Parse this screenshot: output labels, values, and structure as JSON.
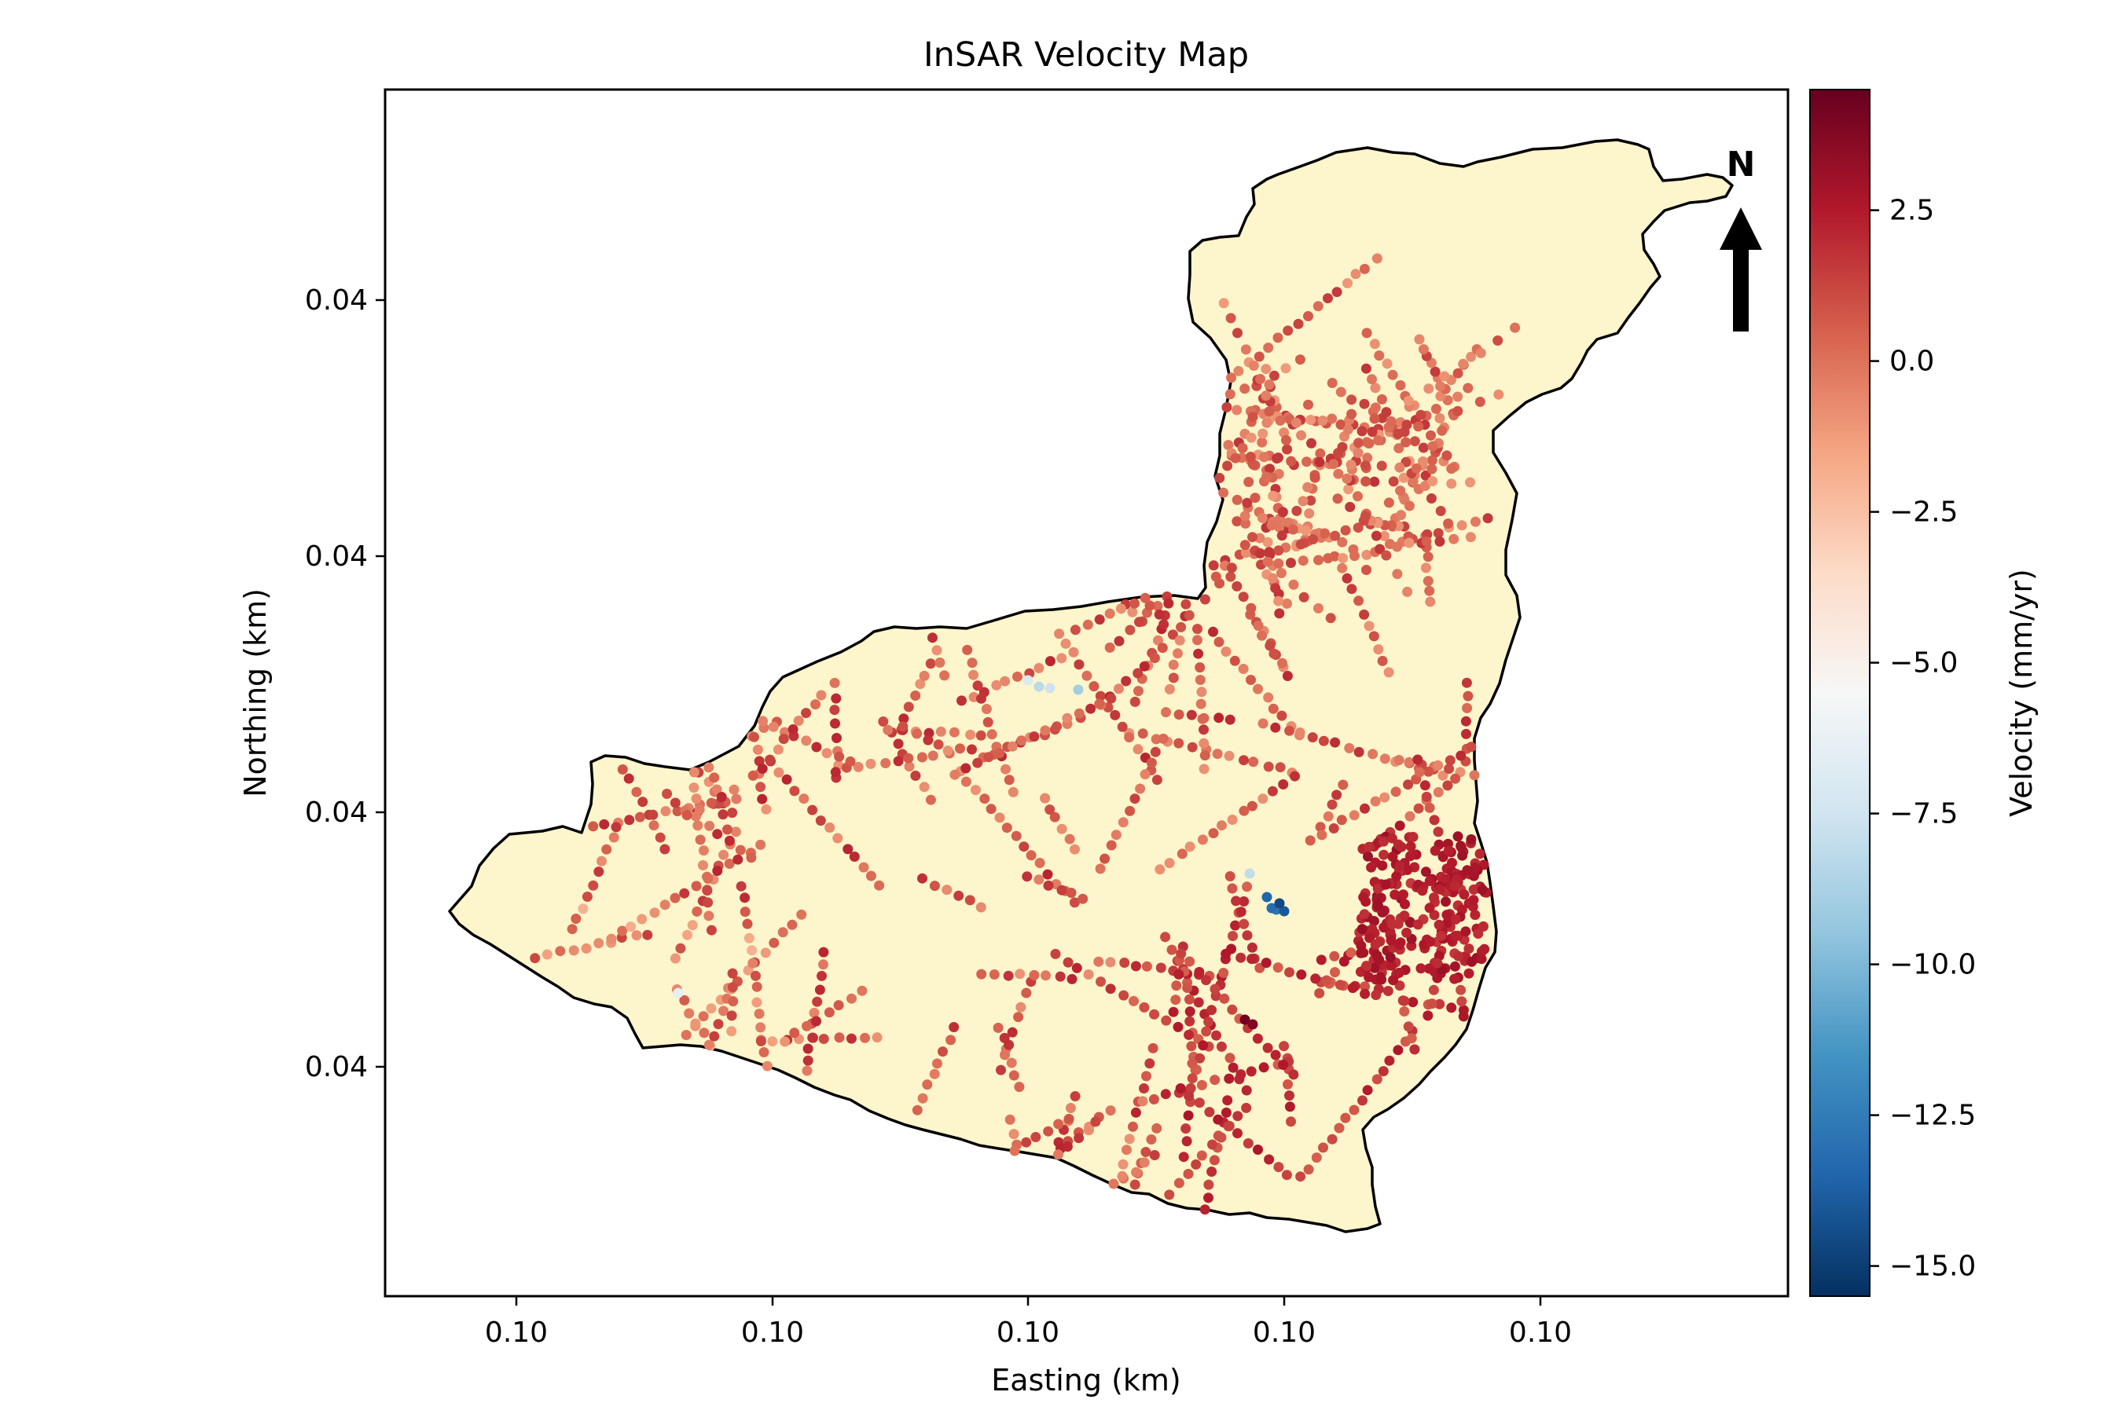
{
  "chart_data": {
    "type": "scatter",
    "title": "InSAR Velocity Map",
    "xlabel": "Easting (km)",
    "ylabel": "Northing (km)",
    "x_tick_labels": [
      "0.10",
      "0.10",
      "0.10",
      "0.10",
      "0.10"
    ],
    "y_tick_labels": [
      "0.04",
      "0.04",
      "0.04",
      "0.04"
    ],
    "grid": false,
    "north_arrow_label": "N",
    "colorbar": {
      "label": "Velocity (mm/yr)",
      "colormap": "RdBu_r",
      "range": [
        -15.5,
        4.5
      ],
      "ticks": [
        2.5,
        0.0,
        -2.5,
        -5.0,
        -7.5,
        -10.0,
        -12.5,
        -15.0
      ],
      "tick_labels": [
        "2.5",
        "0.0",
        "−2.5",
        "−5.0",
        "−7.5",
        "−10.0",
        "−12.5",
        "−15.0"
      ]
    },
    "colors": {
      "basin_fill": "#fdf5cc",
      "basin_outline": "#000000",
      "colormap_stops": [
        "#053061",
        "#2166ac",
        "#4393c3",
        "#92c5de",
        "#d1e5f0",
        "#f7f7f7",
        "#fddbc7",
        "#f4a582",
        "#d6604d",
        "#b2182b",
        "#67001f"
      ]
    },
    "series": [
      {
        "description_velocity_clusters": "dense points; values in mm/yr",
        "clusters": [
          {
            "region": "north-lobe",
            "velocity_range": [
              -1.5,
              1.5
            ]
          },
          {
            "region": "west-center",
            "velocity_range": [
              -0.5,
              1.5
            ]
          },
          {
            "region": "south-center",
            "velocity_range": [
              0.0,
              2.5
            ]
          },
          {
            "region": "east-dense-patch",
            "velocity_range": [
              1.5,
              3.0
            ]
          },
          {
            "region": "blue-anomaly",
            "velocity_range": [
              -15.0,
              -11.0
            ]
          },
          {
            "region": "light-blue-spots",
            "velocity_range": [
              -9.0,
              -6.0
            ]
          }
        ]
      }
    ]
  }
}
